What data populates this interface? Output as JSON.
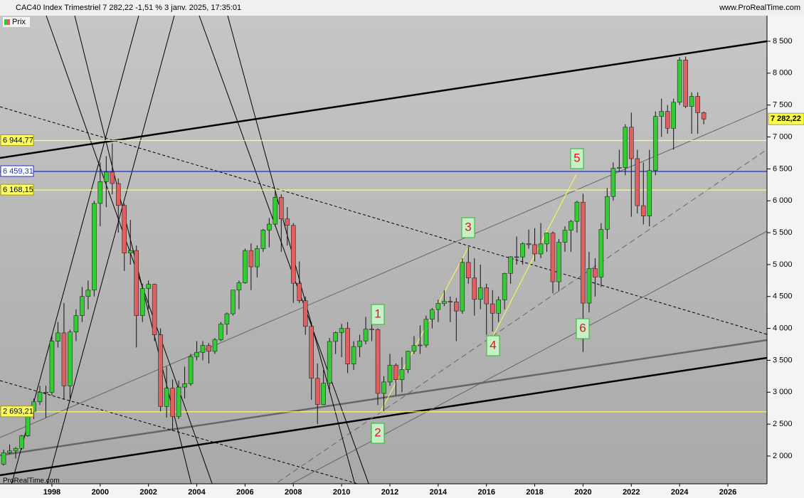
{
  "header": {
    "title": "CAC40 Index Trimestriel 7 282,22 -1,51 % 3 janv. 2025, 17:35:01",
    "site": "www.ProRealTime.com",
    "footer": "ProRealTime.com"
  },
  "chart_data": {
    "type": "candlestick",
    "legend": "Prix",
    "up_color": "#33cc33",
    "down_color": "#e06060",
    "last_value": 7282.22,
    "last_label": "7 282,22",
    "xlim": [
      1995.85,
      2027.62
    ],
    "xticks": [
      1998,
      2000,
      2002,
      2004,
      2006,
      2008,
      2010,
      2012,
      2014,
      2016,
      2018,
      2020,
      2022,
      2024,
      2026
    ],
    "ylim": [
      1565,
      8901
    ],
    "yticks": [
      {
        "value": 2000,
        "label": "2 000"
      },
      {
        "value": 2500,
        "label": "2 500"
      },
      {
        "value": 3000,
        "label": "3 000"
      },
      {
        "value": 3500,
        "label": "3 500"
      },
      {
        "value": 4000,
        "label": "4 000"
      },
      {
        "value": 4500,
        "label": "4 500"
      },
      {
        "value": 5000,
        "label": "5 000"
      },
      {
        "value": 5500,
        "label": "5 500"
      },
      {
        "value": 6000,
        "label": "6 000"
      },
      {
        "value": 6500,
        "label": "6 500"
      },
      {
        "value": 7000,
        "label": "7 000"
      },
      {
        "value": 7500,
        "label": "7 500"
      },
      {
        "value": 8000,
        "label": "8 000"
      },
      {
        "value": 8500,
        "label": "8 500"
      }
    ],
    "hlines": [
      {
        "value": 6944.77,
        "label": "6 944,77",
        "color": "#ffff66"
      },
      {
        "value": 6459.31,
        "label": "6 459,31",
        "color": "#2030d0"
      },
      {
        "value": 6168.15,
        "label": "6 168,15",
        "color": "#ffff66"
      },
      {
        "value": 2693.21,
        "label": "2 693,21",
        "color": "#ffff66"
      }
    ],
    "annotations": [
      "1",
      "2",
      "3",
      "4",
      "5",
      "6"
    ],
    "x": [
      1996,
      1996.25,
      1996.5,
      1996.75,
      1997,
      1997.25,
      1997.5,
      1997.75,
      1998,
      1998.25,
      1998.5,
      1998.75,
      1999,
      1999.25,
      1999.5,
      1999.75,
      2000,
      2000.25,
      2000.5,
      2000.75,
      2001,
      2001.25,
      2001.5,
      2001.75,
      2002,
      2002.25,
      2002.5,
      2002.75,
      2003,
      2003.25,
      2003.5,
      2003.75,
      2004,
      2004.25,
      2004.5,
      2004.75,
      2005,
      2005.25,
      2005.5,
      2005.75,
      2006,
      2006.25,
      2006.5,
      2006.75,
      2007,
      2007.25,
      2007.5,
      2007.75,
      2008,
      2008.25,
      2008.5,
      2008.75,
      2009,
      2009.25,
      2009.5,
      2009.75,
      2010,
      2010.25,
      2010.5,
      2010.75,
      2011,
      2011.25,
      2011.5,
      2011.75,
      2012,
      2012.25,
      2012.5,
      2012.75,
      2013,
      2013.25,
      2013.5,
      2013.75,
      2014,
      2014.25,
      2014.5,
      2014.75,
      2015,
      2015.25,
      2015.5,
      2015.75,
      2016,
      2016.25,
      2016.5,
      2016.75,
      2017,
      2017.25,
      2017.5,
      2017.75,
      2018,
      2018.25,
      2018.5,
      2018.75,
      2019,
      2019.25,
      2019.5,
      2019.75,
      2020,
      2020.25,
      2020.5,
      2020.75,
      2021,
      2021.25,
      2021.5,
      2021.75,
      2022,
      2022.25,
      2022.5,
      2022.75,
      2023,
      2023.25,
      2023.5,
      2023.75,
      2024,
      2024.25,
      2024.5,
      2024.75,
      2025
    ],
    "candles": [
      [
        1872,
        2100,
        1850,
        2050
      ],
      [
        2050,
        2180,
        2030,
        2080
      ],
      [
        2080,
        2140,
        1960,
        2120
      ],
      [
        2120,
        2330,
        2100,
        2316
      ],
      [
        2316,
        2750,
        2300,
        2700
      ],
      [
        2700,
        2900,
        2580,
        2850
      ],
      [
        2850,
        3100,
        2800,
        3000
      ],
      [
        3000,
        3100,
        2600,
        2999
      ],
      [
        2999,
        3900,
        2950,
        3800
      ],
      [
        3800,
        4100,
        3700,
        3930
      ],
      [
        3930,
        4400,
        2880,
        3100
      ],
      [
        3100,
        3980,
        2900,
        3943
      ],
      [
        3943,
        4300,
        3800,
        4200
      ],
      [
        4200,
        4650,
        4100,
        4500
      ],
      [
        4500,
        4750,
        4300,
        4600
      ],
      [
        4600,
        6000,
        4500,
        5958
      ],
      [
        5958,
        6600,
        5600,
        6300
      ],
      [
        6300,
        6700,
        5900,
        6450
      ],
      [
        6450,
        6900,
        6100,
        6270
      ],
      [
        6270,
        6350,
        5500,
        5926
      ],
      [
        5926,
        5960,
        4900,
        5180
      ],
      [
        5180,
        5700,
        5000,
        5220
      ],
      [
        5220,
        5300,
        3700,
        4200
      ],
      [
        4200,
        4700,
        4100,
        4625
      ],
      [
        4625,
        4750,
        4300,
        4690
      ],
      [
        4690,
        4700,
        3800,
        3900
      ],
      [
        3900,
        4000,
        2700,
        2777
      ],
      [
        2777,
        3400,
        2600,
        3063
      ],
      [
        3063,
        3200,
        2400,
        2620
      ],
      [
        2620,
        3180,
        2580,
        3080
      ],
      [
        3080,
        3400,
        2900,
        3134
      ],
      [
        3134,
        3600,
        3100,
        3558
      ],
      [
        3558,
        3800,
        3500,
        3625
      ],
      [
        3625,
        3800,
        3500,
        3732
      ],
      [
        3732,
        3770,
        3450,
        3640
      ],
      [
        3640,
        3850,
        3600,
        3821
      ],
      [
        3821,
        4100,
        3800,
        4067
      ],
      [
        4067,
        4250,
        3900,
        4229
      ],
      [
        4229,
        4600,
        4200,
        4600
      ],
      [
        4600,
        4750,
        4300,
        4715
      ],
      [
        4715,
        5250,
        4700,
        5220
      ],
      [
        5220,
        5330,
        4600,
        4965
      ],
      [
        4965,
        5300,
        4800,
        5250
      ],
      [
        5250,
        5560,
        5200,
        5541
      ],
      [
        5541,
        5730,
        5270,
        5634
      ],
      [
        5634,
        6170,
        5600,
        6054
      ],
      [
        6054,
        6100,
        5200,
        5715
      ],
      [
        5715,
        5900,
        5300,
        5614
      ],
      [
        5614,
        5650,
        4400,
        4707
      ],
      [
        4707,
        5050,
        4400,
        4434
      ],
      [
        4434,
        4500,
        3900,
        4032
      ],
      [
        4032,
        4100,
        2880,
        3218
      ],
      [
        3218,
        3450,
        2500,
        2807
      ],
      [
        2807,
        3350,
        2800,
        3140
      ],
      [
        3140,
        3850,
        3000,
        3795
      ],
      [
        3795,
        3950,
        3600,
        3936
      ],
      [
        3936,
        4070,
        3550,
        4000
      ],
      [
        4000,
        4100,
        3300,
        3443
      ],
      [
        3443,
        3800,
        3350,
        3715
      ],
      [
        3715,
        3900,
        3550,
        3804
      ],
      [
        3804,
        4180,
        3750,
        3989
      ],
      [
        3989,
        4110,
        3800,
        3982
      ],
      [
        3982,
        4000,
        2800,
        2981
      ],
      [
        2981,
        3250,
        2700,
        3160
      ],
      [
        3160,
        3600,
        3100,
        3424
      ],
      [
        3424,
        3450,
        2950,
        3196
      ],
      [
        3196,
        3550,
        3000,
        3354
      ],
      [
        3354,
        3650,
        3300,
        3641
      ],
      [
        3641,
        3880,
        3600,
        3731
      ],
      [
        3731,
        4050,
        3600,
        3739
      ],
      [
        3739,
        4200,
        3700,
        4143
      ],
      [
        4143,
        4320,
        4000,
        4296
      ],
      [
        4296,
        4450,
        4100,
        4391
      ],
      [
        4391,
        4600,
        4350,
        4423
      ],
      [
        4423,
        4500,
        4100,
        4416
      ],
      [
        4416,
        4480,
        3800,
        4273
      ],
      [
        4273,
        5100,
        4230,
        5034
      ],
      [
        5034,
        5280,
        4700,
        4790
      ],
      [
        4790,
        5100,
        4200,
        4455
      ],
      [
        4455,
        5000,
        4300,
        4637
      ],
      [
        4637,
        4700,
        3900,
        4385
      ],
      [
        4385,
        4600,
        3950,
        4237
      ],
      [
        4237,
        4500,
        4100,
        4448
      ],
      [
        4448,
        4870,
        4300,
        4862
      ],
      [
        4862,
        5130,
        4700,
        5122
      ],
      [
        5122,
        5440,
        5000,
        5120
      ],
      [
        5120,
        5350,
        5000,
        5329
      ],
      [
        5329,
        5550,
        5250,
        5312
      ],
      [
        5312,
        5570,
        5050,
        5167
      ],
      [
        5167,
        5650,
        5100,
        5324
      ],
      [
        5324,
        5500,
        5200,
        5493
      ],
      [
        5493,
        5520,
        4550,
        4731
      ],
      [
        4731,
        5400,
        4580,
        5350
      ],
      [
        5350,
        5600,
        5200,
        5539
      ],
      [
        5539,
        5700,
        5200,
        5678
      ],
      [
        5678,
        6000,
        5500,
        5978
      ],
      [
        5978,
        6110,
        3630,
        4396
      ],
      [
        4396,
        5200,
        4250,
        4936
      ],
      [
        4936,
        5100,
        4500,
        4803
      ],
      [
        4803,
        5650,
        4650,
        5551
      ],
      [
        5551,
        6200,
        5400,
        6067
      ],
      [
        6067,
        6600,
        6000,
        6508
      ],
      [
        6508,
        6800,
        6450,
        6520
      ],
      [
        6520,
        7200,
        6400,
        7153
      ],
      [
        7153,
        7380,
        5750,
        6660
      ],
      [
        6660,
        6800,
        5800,
        5923
      ],
      [
        5923,
        6600,
        5630,
        5762
      ],
      [
        5762,
        6800,
        5600,
        6474
      ],
      [
        6474,
        7400,
        6400,
        7322
      ],
      [
        7322,
        7600,
        7000,
        7400
      ],
      [
        7400,
        7500,
        7050,
        7135
      ],
      [
        7135,
        7600,
        6800,
        7543
      ],
      [
        7543,
        8250,
        7500,
        8206
      ],
      [
        8206,
        8260,
        7450,
        7479
      ],
      [
        7479,
        7700,
        7050,
        7636
      ],
      [
        7636,
        7700,
        7050,
        7381
      ],
      [
        7381,
        7400,
        7200,
        7282
      ]
    ]
  }
}
